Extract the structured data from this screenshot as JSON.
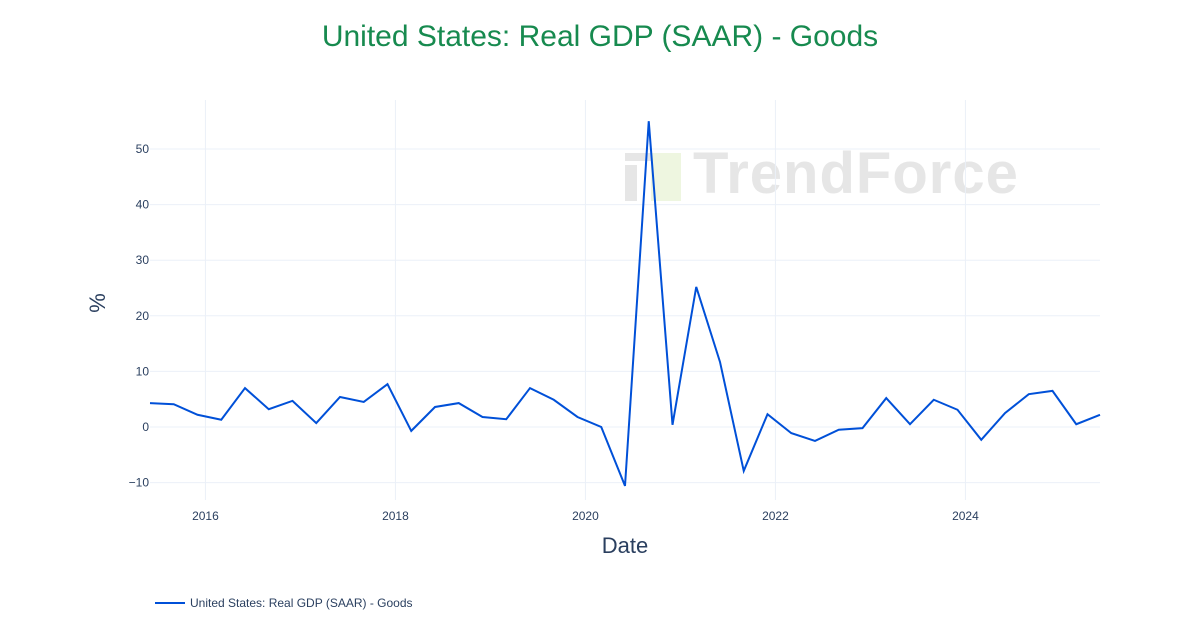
{
  "chart_data": {
    "type": "line",
    "title": "United States: Real GDP (SAAR) - Goods",
    "xlabel": "Date",
    "ylabel": "%",
    "x": [
      "2015-06",
      "2015-09",
      "2015-12",
      "2016-03",
      "2016-06",
      "2016-09",
      "2016-12",
      "2017-03",
      "2017-06",
      "2017-09",
      "2017-12",
      "2018-03",
      "2018-06",
      "2018-09",
      "2018-12",
      "2019-03",
      "2019-06",
      "2019-09",
      "2019-12",
      "2020-03",
      "2020-06",
      "2020-09",
      "2020-12",
      "2021-03",
      "2021-06",
      "2021-09",
      "2021-12",
      "2022-03",
      "2022-06",
      "2022-09",
      "2022-12",
      "2023-03",
      "2023-06",
      "2023-09",
      "2023-12",
      "2024-03",
      "2024-06",
      "2024-09",
      "2024-12",
      "2025-03",
      "2025-06"
    ],
    "series": [
      {
        "name": "United States: Real GDP (SAAR) - Goods",
        "color": "#0050d8",
        "values": [
          4.3,
          4.1,
          2.2,
          1.3,
          7.0,
          3.2,
          4.7,
          0.7,
          5.4,
          4.5,
          7.7,
          -0.7,
          3.6,
          4.3,
          1.8,
          1.4,
          7.0,
          4.9,
          1.8,
          0.0,
          -10.6,
          55.0,
          0.4,
          25.2,
          11.7,
          -7.9,
          2.3,
          -1.1,
          -2.5,
          -0.5,
          -0.2,
          5.2,
          0.5,
          4.9,
          3.1,
          -2.3,
          2.5,
          5.9,
          6.5,
          0.5,
          2.2
        ]
      }
    ],
    "xticks": [
      "2016",
      "2018",
      "2020",
      "2022",
      "2024"
    ],
    "yticks": [
      -10,
      0,
      10,
      20,
      30,
      40,
      50
    ],
    "ytick_labels": [
      "−10",
      "0",
      "10",
      "20",
      "30",
      "40",
      "50"
    ],
    "ylim": [
      -12,
      59
    ],
    "xlim": [
      "2015-06",
      "2025-06"
    ],
    "grid": true,
    "legend": "bottom-left"
  },
  "watermark": "TrendForce"
}
